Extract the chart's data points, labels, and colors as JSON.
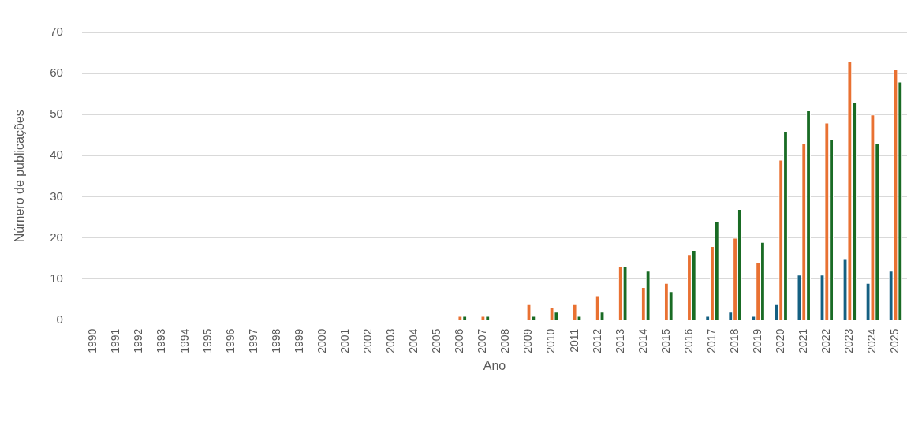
{
  "chart_data": {
    "type": "bar",
    "xlabel": "Ano",
    "ylabel": "Número de publicações",
    "categories": [
      "1990",
      "1991",
      "1992",
      "1993",
      "1994",
      "1995",
      "1996",
      "1997",
      "1998",
      "1999",
      "2000",
      "2001",
      "2002",
      "2003",
      "2004",
      "2005",
      "2006",
      "2007",
      "2008",
      "2009",
      "2010",
      "2011",
      "2012",
      "2013",
      "2014",
      "2015",
      "2016",
      "2017",
      "2018",
      "2019",
      "2020",
      "2021",
      "2022",
      "2023",
      "2024",
      "2025"
    ],
    "series": [
      {
        "color": "#156082",
        "values": [
          0,
          0,
          0,
          0,
          0,
          0,
          0,
          0,
          0,
          0,
          0,
          0,
          0,
          0,
          0,
          0,
          0,
          0,
          0,
          0,
          0,
          0,
          0,
          0,
          0,
          0,
          0,
          1,
          2,
          1,
          4,
          11,
          11,
          15,
          9,
          12
        ]
      },
      {
        "color": "#e97132",
        "values": [
          0,
          0,
          0,
          0,
          0,
          0,
          0,
          0,
          0,
          0,
          0,
          0,
          0,
          0,
          0,
          0,
          1,
          1,
          0,
          4,
          3,
          4,
          6,
          13,
          8,
          9,
          16,
          18,
          20,
          14,
          39,
          43,
          48,
          63,
          50,
          61
        ]
      },
      {
        "color": "#196b24",
        "values": [
          0,
          0,
          0,
          0,
          0,
          0,
          0,
          0,
          0,
          0,
          0,
          0,
          0,
          0,
          0,
          0,
          1,
          1,
          0,
          1,
          2,
          1,
          2,
          13,
          12,
          7,
          17,
          24,
          27,
          19,
          46,
          51,
          44,
          53,
          43,
          58
        ]
      }
    ],
    "ylim": [
      0,
      70
    ],
    "yticks": [
      0,
      10,
      20,
      30,
      40,
      50,
      60,
      70
    ],
    "grid": "y"
  }
}
